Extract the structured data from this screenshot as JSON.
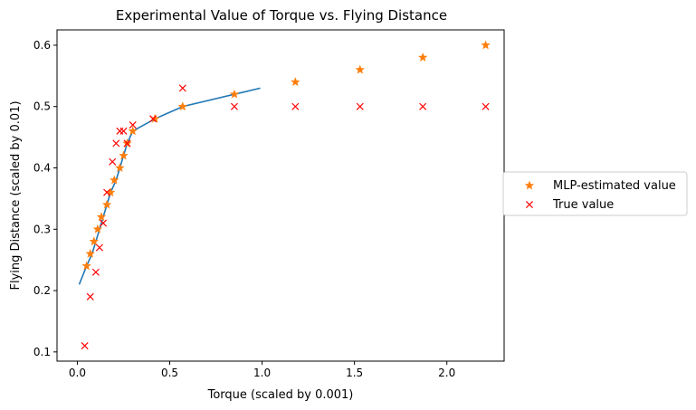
{
  "chart_data": {
    "type": "scatter",
    "title": "Experimental Value of Torque vs. Flying Distance",
    "xlabel": "Torque (scaled by 0.001)",
    "ylabel": "Flying Distance (scaled by 0.01)",
    "xlim": [
      -0.11,
      2.31
    ],
    "ylim": [
      0.085,
      0.625
    ],
    "x_ticks": [
      0.0,
      0.5,
      1.0,
      1.5,
      2.0
    ],
    "x_tick_labels": [
      "0.0",
      "0.5",
      "1.0",
      "1.5",
      "2.0"
    ],
    "y_ticks": [
      0.1,
      0.2,
      0.3,
      0.4,
      0.5,
      0.6
    ],
    "y_tick_labels": [
      "0.1",
      "0.2",
      "0.3",
      "0.4",
      "0.5",
      "0.6"
    ],
    "grid": false,
    "legend_position": "outside-right",
    "series": [
      {
        "kind": "line",
        "color": "#1f77b4",
        "points": [
          [
            0.01,
            0.21
          ],
          [
            0.05,
            0.24
          ],
          [
            0.08,
            0.26
          ],
          [
            0.1,
            0.28
          ],
          [
            0.12,
            0.3
          ],
          [
            0.14,
            0.32
          ],
          [
            0.16,
            0.34
          ],
          [
            0.18,
            0.36
          ],
          [
            0.21,
            0.38
          ],
          [
            0.23,
            0.4
          ],
          [
            0.25,
            0.42
          ],
          [
            0.27,
            0.44
          ],
          [
            0.3,
            0.46
          ],
          [
            0.42,
            0.48
          ],
          [
            0.57,
            0.5
          ],
          [
            0.85,
            0.52
          ],
          [
            0.99,
            0.53
          ]
        ]
      },
      {
        "name": "MLP-estimated value",
        "kind": "marker",
        "marker": "star",
        "color": "#ff7f0e",
        "points": [
          [
            0.05,
            0.24
          ],
          [
            0.07,
            0.26
          ],
          [
            0.09,
            0.28
          ],
          [
            0.11,
            0.3
          ],
          [
            0.13,
            0.32
          ],
          [
            0.16,
            0.34
          ],
          [
            0.18,
            0.36
          ],
          [
            0.2,
            0.38
          ],
          [
            0.23,
            0.4
          ],
          [
            0.25,
            0.42
          ],
          [
            0.27,
            0.44
          ],
          [
            0.3,
            0.46
          ],
          [
            0.42,
            0.48
          ],
          [
            0.57,
            0.5
          ],
          [
            0.85,
            0.52
          ],
          [
            1.18,
            0.54
          ],
          [
            1.53,
            0.56
          ],
          [
            1.87,
            0.58
          ],
          [
            2.21,
            0.6
          ]
        ]
      },
      {
        "name": "True value",
        "kind": "marker",
        "marker": "x",
        "color": "#ff0000",
        "points": [
          [
            0.04,
            0.11
          ],
          [
            0.07,
            0.19
          ],
          [
            0.1,
            0.23
          ],
          [
            0.12,
            0.27
          ],
          [
            0.14,
            0.31
          ],
          [
            0.16,
            0.36
          ],
          [
            0.19,
            0.41
          ],
          [
            0.21,
            0.44
          ],
          [
            0.23,
            0.46
          ],
          [
            0.25,
            0.46
          ],
          [
            0.27,
            0.44
          ],
          [
            0.3,
            0.47
          ],
          [
            0.41,
            0.48
          ],
          [
            0.57,
            0.53
          ],
          [
            0.85,
            0.5
          ],
          [
            1.18,
            0.5
          ],
          [
            1.53,
            0.5
          ],
          [
            1.87,
            0.5
          ],
          [
            2.21,
            0.5
          ]
        ]
      }
    ]
  }
}
